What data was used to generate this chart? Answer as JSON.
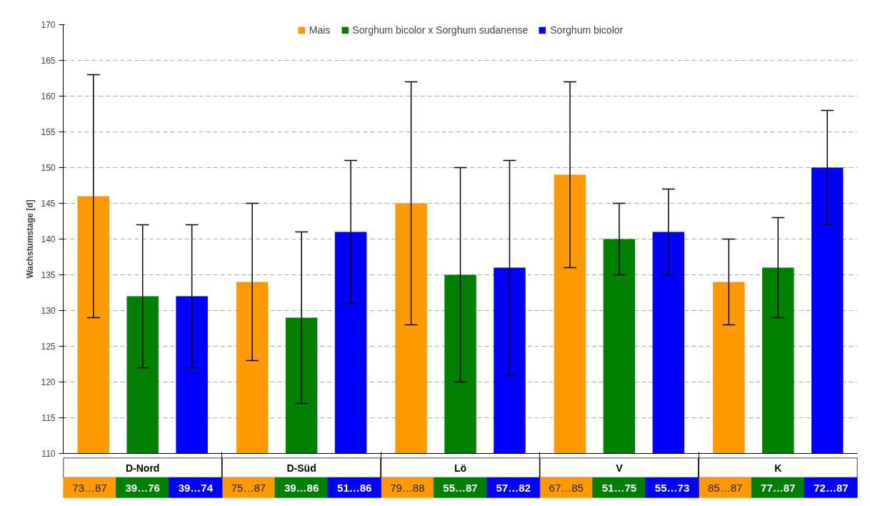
{
  "chart_data": {
    "type": "bar",
    "ylabel": "Wachstumstage [d]",
    "categories": [
      "D-Nord",
      "D-Süd",
      "Lö",
      "V",
      "K"
    ],
    "series": [
      {
        "name": "Mais",
        "color": "#ff9900",
        "values": [
          146,
          134,
          145,
          149,
          134
        ],
        "errors": [
          [
            129,
            163
          ],
          [
            123,
            145
          ],
          [
            128,
            162
          ],
          [
            136,
            162
          ],
          [
            128,
            140
          ]
        ]
      },
      {
        "name": "Sorghum bicolor x Sorghum sudanense",
        "color": "#008000",
        "values": [
          132,
          129,
          135,
          140,
          136
        ],
        "errors": [
          [
            122,
            142
          ],
          [
            117,
            141
          ],
          [
            120,
            150
          ],
          [
            135,
            145
          ],
          [
            129,
            143
          ]
        ]
      },
      {
        "name": "Sorghum bicolor",
        "color": "#0000ff",
        "values": [
          132,
          141,
          136,
          141,
          150
        ],
        "errors": [
          [
            122,
            142
          ],
          [
            131,
            151
          ],
          [
            121,
            151
          ],
          [
            135,
            147
          ],
          [
            142,
            158
          ]
        ]
      }
    ],
    "ylim": [
      110,
      170
    ],
    "yticks": [
      110,
      115,
      120,
      125,
      130,
      135,
      140,
      145,
      150,
      155,
      160,
      165,
      170
    ],
    "annotations": [
      "73…87",
      "39…76",
      "39…74",
      "75…87",
      "39…86",
      "51…86",
      "79…88",
      "55…87",
      "57…82",
      "67…85",
      "51…75",
      "55…73",
      "85…87",
      "77…87",
      "72…87"
    ],
    "grid": "y",
    "legend": "top"
  }
}
